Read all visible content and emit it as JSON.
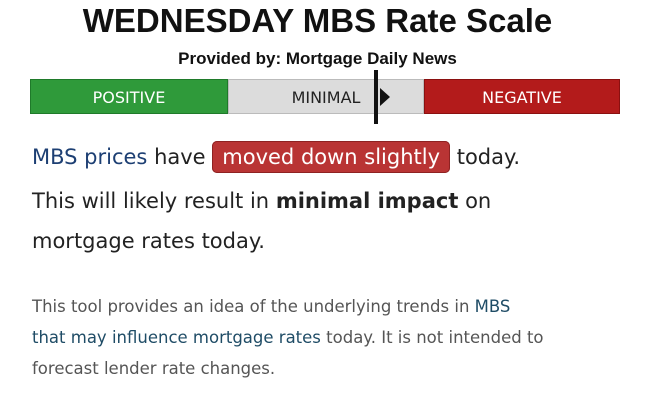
{
  "header": {
    "title": "WEDNESDAY MBS Rate Scale",
    "subtitle": "Provided by: Mortgage Daily News"
  },
  "scale": {
    "labels": [
      "POSITIVE",
      "MINIMAL",
      "NEGATIVE"
    ]
  },
  "summary": {
    "lines": [
      [
        "MBS prices",
        "have",
        "moved down slightly",
        "today."
      ],
      [
        "This will likely result in",
        "minimal impact",
        "on"
      ],
      [
        "mortgage rates today."
      ]
    ]
  },
  "disclaimer": {
    "lines": [
      [
        "This tool provides an idea of the underlying trends in",
        "MBS"
      ],
      [
        "that may influence mortgage rates",
        "today. It is not intended to"
      ],
      [
        "forecast lender rate changes."
      ]
    ]
  }
}
